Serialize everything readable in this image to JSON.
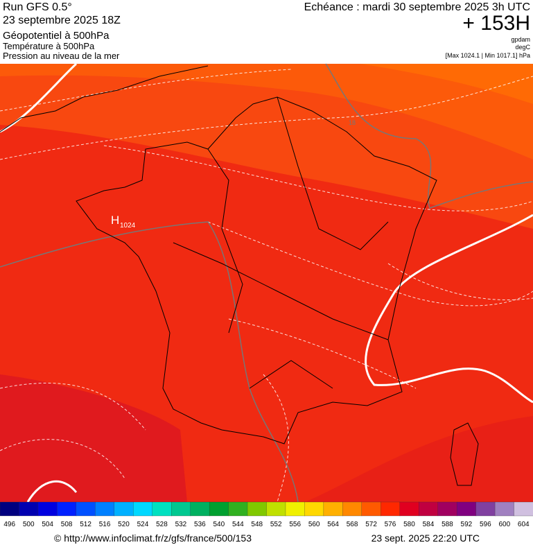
{
  "header": {
    "run": "Run GFS 0.5°",
    "run_date": "23 septembre 2025 18Z",
    "field1": "Géopotentiel à 500hPa",
    "field2": "Température à 500hPa",
    "field3": "Pression au niveau de la mer",
    "valid": "Echéance : mardi 30 septembre 2025 3h UTC",
    "lead": "+ 153H",
    "unit1": "gpdam",
    "unit2": "degC",
    "pressure_range": "[Max 1024.1 | Min 1017.1] hPa"
  },
  "map": {
    "high_letter": "H",
    "high_value": "1024",
    "isobar_label": "18"
  },
  "scale": {
    "labels": [
      496,
      500,
      504,
      508,
      512,
      516,
      520,
      524,
      528,
      532,
      536,
      540,
      544,
      548,
      552,
      556,
      560,
      564,
      568,
      572,
      576,
      580,
      584,
      588,
      592,
      596,
      600,
      604
    ],
    "colors": [
      "#00007f",
      "#0000b0",
      "#0000e0",
      "#0020ff",
      "#0050ff",
      "#0080ff",
      "#00b0ff",
      "#00d8ff",
      "#00e0c0",
      "#00c890",
      "#00b060",
      "#00a030",
      "#30b020",
      "#80c800",
      "#c0e000",
      "#f0f000",
      "#ffd800",
      "#ffb000",
      "#ff8800",
      "#ff5a00",
      "#ff2800",
      "#e00020",
      "#c00040",
      "#a00060",
      "#800080",
      "#8040a0",
      "#a080c0",
      "#d0c0e0"
    ]
  },
  "footer": {
    "url": "© http://www.infoclimat.fr/z/gfs/france/500/153",
    "timestamp": "23 sept. 2025 22:20 UTC"
  }
}
